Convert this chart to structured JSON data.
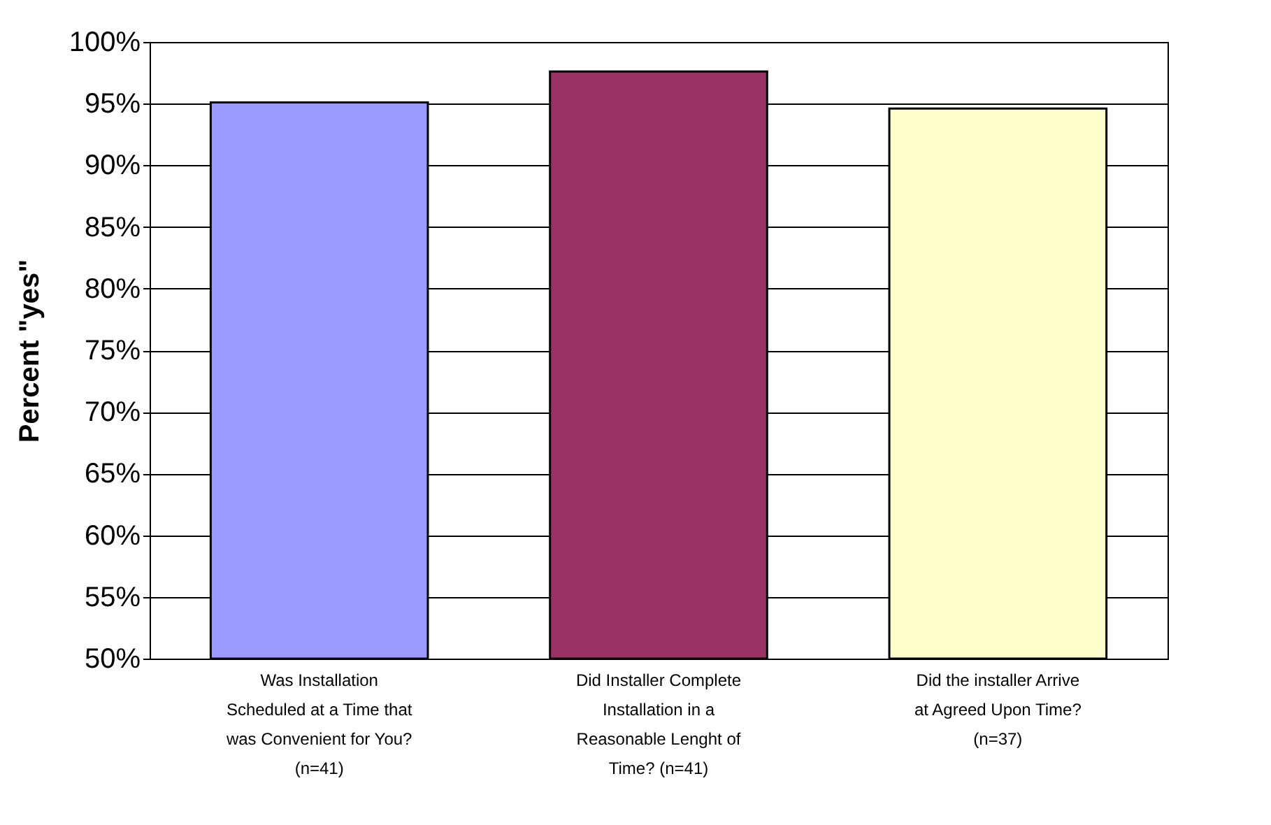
{
  "chart_data": {
    "type": "bar",
    "ylabel": "Percent \"yes\"",
    "categories": [
      "Was Installation Scheduled at a Time that was Convenient for You? (n=41)",
      "Did Installer Complete Installation in a Reasonable Lenght of Time? (n=41)",
      "Did the installer Arrive at Agreed Upon Time? (n=37)"
    ],
    "values": [
      95.1,
      97.6,
      94.6
    ],
    "colors": [
      "#9999ff",
      "#993366",
      "#ffffcc"
    ],
    "ylim": [
      50,
      100
    ],
    "yticks": [
      {
        "value": 50,
        "label": "50%"
      },
      {
        "value": 55,
        "label": "55%"
      },
      {
        "value": 60,
        "label": "60%"
      },
      {
        "value": 65,
        "label": "65%"
      },
      {
        "value": 70,
        "label": "70%"
      },
      {
        "value": 75,
        "label": "75%"
      },
      {
        "value": 80,
        "label": "80%"
      },
      {
        "value": 85,
        "label": "85%"
      },
      {
        "value": 90,
        "label": "90%"
      },
      {
        "value": 95,
        "label": "95%"
      },
      {
        "value": 100,
        "label": "100%"
      }
    ],
    "grid": "y",
    "legend": false
  }
}
